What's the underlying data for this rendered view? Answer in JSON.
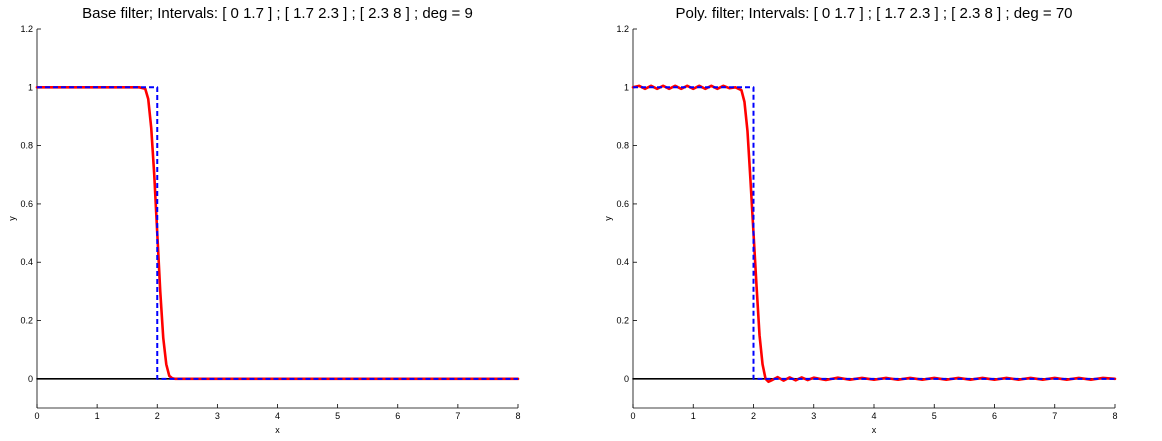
{
  "chart_data": [
    {
      "type": "line",
      "title": "Base filter; Intervals: [ 0   1.7 ] ; [ 1.7   2.3 ] ; [ 2.3   8 ] ;  deg = 9",
      "xlabel": "x",
      "ylabel": "y",
      "xlim": [
        0,
        8
      ],
      "ylim": [
        -0.1,
        1.2
      ],
      "xticks": [
        "0",
        "1",
        "2",
        "3",
        "4",
        "5",
        "6",
        "7",
        "8"
      ],
      "yticks": [
        "0",
        "0.2",
        "0.4",
        "0.6",
        "0.8",
        "1",
        "1.2"
      ],
      "grid": false,
      "series": [
        {
          "style": "dashed",
          "color": "#0000ff",
          "x": [
            0,
            2,
            2,
            8
          ],
          "y": [
            1,
            1,
            0,
            0
          ]
        },
        {
          "style": "solid",
          "color": "#ff0000",
          "x": [
            0,
            1.7,
            1.8,
            1.85,
            1.9,
            1.95,
            2.0,
            2.05,
            2.1,
            2.15,
            2.2,
            2.25,
            2.3,
            8
          ],
          "y": [
            1,
            1,
            0.995,
            0.96,
            0.86,
            0.7,
            0.5,
            0.3,
            0.14,
            0.05,
            0.01,
            0.002,
            0,
            0
          ]
        },
        {
          "style": "solid",
          "color": "#000000",
          "x": [
            0,
            8
          ],
          "y": [
            0,
            0
          ]
        }
      ]
    },
    {
      "type": "line",
      "title": "Poly. filter; Intervals: [ 0   1.7 ] ; [ 1.7   2.3 ] ; [ 2.3   8 ] ;  deg = 70",
      "xlabel": "x",
      "ylabel": "y",
      "xlim": [
        0,
        8
      ],
      "ylim": [
        -0.1,
        1.2
      ],
      "xticks": [
        "0",
        "1",
        "2",
        "3",
        "4",
        "5",
        "6",
        "7",
        "8"
      ],
      "yticks": [
        "0",
        "0.2",
        "0.4",
        "0.6",
        "0.8",
        "1",
        "1.2"
      ],
      "grid": false,
      "series": [
        {
          "style": "dashed",
          "color": "#0000ff",
          "x": [
            0,
            2,
            2,
            8
          ],
          "y": [
            1,
            1,
            0,
            0
          ]
        },
        {
          "style": "solid",
          "color": "#ff0000",
          "x": [
            0,
            0.1,
            0.2,
            0.3,
            0.4,
            0.5,
            0.6,
            0.7,
            0.8,
            0.9,
            1.0,
            1.1,
            1.2,
            1.3,
            1.4,
            1.5,
            1.6,
            1.7,
            1.8,
            1.85,
            1.9,
            1.95,
            2.0,
            2.05,
            2.1,
            2.15,
            2.2,
            2.25,
            2.3,
            2.4,
            2.5,
            2.6,
            2.7,
            2.8,
            2.9,
            3.0,
            3.2,
            3.4,
            3.6,
            3.8,
            4.0,
            4.2,
            4.4,
            4.6,
            4.8,
            5.0,
            5.2,
            5.4,
            5.6,
            5.8,
            6.0,
            6.2,
            6.4,
            6.6,
            6.8,
            7.0,
            7.2,
            7.4,
            7.6,
            7.8,
            8.0
          ],
          "y": [
            1.0,
            1.005,
            0.995,
            1.005,
            0.995,
            1.005,
            0.995,
            1.005,
            0.995,
            1.005,
            0.995,
            1.005,
            0.995,
            1.005,
            0.995,
            1.005,
            0.997,
            1.0,
            0.99,
            0.95,
            0.85,
            0.68,
            0.5,
            0.32,
            0.15,
            0.05,
            0.0,
            -0.01,
            -0.005,
            0.006,
            -0.006,
            0.005,
            -0.005,
            0.005,
            -0.004,
            0.004,
            -0.004,
            0.004,
            -0.003,
            0.003,
            -0.003,
            0.003,
            -0.003,
            0.003,
            -0.003,
            0.003,
            -0.003,
            0.003,
            -0.003,
            0.003,
            -0.003,
            0.003,
            -0.003,
            0.003,
            -0.003,
            0.003,
            -0.003,
            0.003,
            -0.003,
            0.003,
            0.0
          ]
        },
        {
          "style": "solid",
          "color": "#000000",
          "x": [
            0,
            8
          ],
          "y": [
            0,
            0
          ]
        }
      ]
    }
  ]
}
